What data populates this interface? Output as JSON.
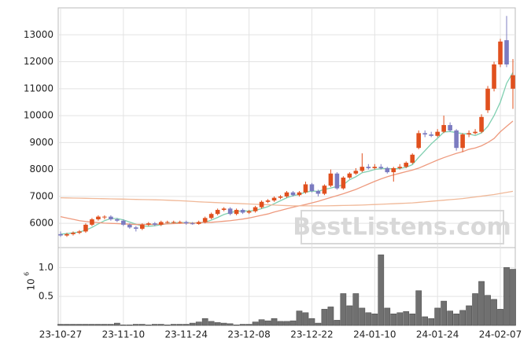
{
  "chart_data": [
    {
      "type": "candlestick",
      "categories": [
        "23-10-27",
        null,
        null,
        null,
        null,
        null,
        null,
        null,
        null,
        null,
        "23-11-10",
        null,
        null,
        null,
        null,
        null,
        null,
        null,
        null,
        null,
        "23-11-24",
        null,
        null,
        null,
        null,
        null,
        null,
        null,
        null,
        null,
        "23-12-08",
        null,
        null,
        null,
        null,
        null,
        null,
        null,
        null,
        null,
        "23-12-22",
        null,
        null,
        null,
        null,
        null,
        null,
        null,
        null,
        null,
        "24-01-10",
        null,
        null,
        null,
        null,
        null,
        null,
        null,
        null,
        null,
        "24-01-24",
        null,
        null,
        null,
        null,
        null,
        null,
        null,
        null,
        null,
        "24-02-07",
        null,
        null
      ],
      "open": [
        5600,
        5550,
        5600,
        5650,
        5700,
        5950,
        6150,
        6250,
        6250,
        6150,
        6100,
        5950,
        5850,
        5800,
        5950,
        6000,
        5950,
        6050,
        6050,
        6050,
        6050,
        6000,
        5980,
        6050,
        6200,
        6350,
        6500,
        6550,
        6350,
        6500,
        6400,
        6450,
        6600,
        6800,
        6850,
        6950,
        7000,
        7150,
        7050,
        7150,
        7450,
        7200,
        7100,
        7400,
        7850,
        7300,
        7700,
        7850,
        7950,
        8100,
        8050,
        8100,
        8050,
        7900,
        8050,
        8100,
        8250,
        8800,
        9350,
        9300,
        9250,
        9400,
        9650,
        9450,
        8800,
        9300,
        9350,
        9400,
        10200,
        11000,
        11900,
        12800,
        11000
      ],
      "high": [
        5700,
        5650,
        5700,
        5750,
        6000,
        6200,
        6300,
        6300,
        6300,
        6200,
        6150,
        6000,
        5900,
        6000,
        6050,
        6050,
        6100,
        6100,
        6100,
        6100,
        6100,
        6050,
        6100,
        6250,
        6400,
        6550,
        6600,
        6600,
        6550,
        6550,
        6500,
        6650,
        6850,
        6900,
        7000,
        7050,
        7200,
        7200,
        7200,
        7550,
        7500,
        7250,
        7450,
        8000,
        7900,
        7750,
        7900,
        8050,
        8600,
        8200,
        8200,
        8200,
        8100,
        8100,
        8200,
        8300,
        8600,
        9450,
        9450,
        9400,
        9500,
        10000,
        9750,
        9500,
        9350,
        9450,
        9500,
        10050,
        11100,
        12000,
        12850,
        13700,
        12100
      ],
      "low": [
        5500,
        5500,
        5550,
        5600,
        5650,
        5900,
        6100,
        6150,
        6100,
        6050,
        5900,
        5800,
        5700,
        5750,
        5900,
        5900,
        5900,
        6000,
        6000,
        6000,
        5950,
        5950,
        5950,
        6000,
        6150,
        6300,
        6450,
        6300,
        6300,
        6350,
        6350,
        6400,
        6550,
        6750,
        6800,
        6900,
        6950,
        7000,
        7000,
        7100,
        7150,
        7000,
        7050,
        7350,
        7250,
        7250,
        7650,
        7800,
        7900,
        8000,
        8000,
        8000,
        7850,
        7550,
        8000,
        8050,
        8200,
        8750,
        9200,
        9200,
        9200,
        9350,
        9400,
        8700,
        8650,
        9200,
        9300,
        9350,
        10100,
        10900,
        11800,
        11800,
        10250
      ],
      "close": [
        5550,
        5600,
        5650,
        5700,
        5950,
        6150,
        6250,
        6250,
        6150,
        6100,
        5950,
        5850,
        5800,
        5950,
        6000,
        5950,
        6050,
        6050,
        6050,
        6050,
        6000,
        5980,
        6050,
        6200,
        6350,
        6500,
        6550,
        6350,
        6500,
        6400,
        6450,
        6600,
        6800,
        6850,
        6950,
        7000,
        7150,
        7050,
        7150,
        7450,
        7200,
        7100,
        7400,
        7850,
        7300,
        7700,
        7850,
        7950,
        8100,
        8050,
        8100,
        8050,
        7900,
        8050,
        8100,
        8250,
        8550,
        9350,
        9300,
        9250,
        9400,
        9650,
        9450,
        8800,
        9300,
        9350,
        9400,
        9950,
        11000,
        11900,
        12750,
        11900,
        11500
      ],
      "up_color": "#e0501e",
      "down_color": "#7b7bc0",
      "series": [
        {
          "color": "#7fcfb0",
          "values": [
            5600,
            5620,
            5650,
            5680,
            5750,
            5850,
            5980,
            6100,
            6180,
            6180,
            6130,
            6050,
            5970,
            5900,
            5890,
            5910,
            5950,
            5990,
            6020,
            6030,
            6030,
            6020,
            6020,
            6050,
            6120,
            6220,
            6330,
            6400,
            6450,
            6460,
            6460,
            6480,
            6550,
            6620,
            6730,
            6840,
            6950,
            7030,
            7070,
            7160,
            7200,
            7190,
            7260,
            7310,
            7370,
            7430,
            7620,
            7730,
            7880,
            7930,
            8000,
            8030,
            8040,
            8020,
            8040,
            8080,
            8180,
            8450,
            8700,
            8950,
            9160,
            9390,
            9410,
            9370,
            9330,
            9320,
            9260,
            9360,
            9600,
            10000,
            10500,
            11200,
            11600
          ]
        },
        {
          "color": "#ee9a7e",
          "values": [
            6250,
            6200,
            6150,
            6100,
            6070,
            6050,
            6030,
            6010,
            6000,
            5990,
            5980,
            5970,
            5960,
            5960,
            5960,
            5960,
            5970,
            5980,
            5990,
            6000,
            6010,
            6010,
            6020,
            6030,
            6040,
            6060,
            6080,
            6100,
            6130,
            6160,
            6200,
            6250,
            6300,
            6350,
            6420,
            6480,
            6540,
            6600,
            6650,
            6700,
            6760,
            6820,
            6890,
            6960,
            7030,
            7100,
            7180,
            7260,
            7360,
            7460,
            7560,
            7650,
            7730,
            7800,
            7860,
            7920,
            7980,
            8050,
            8150,
            8250,
            8350,
            8440,
            8520,
            8600,
            8660,
            8750,
            8800,
            8880,
            9000,
            9150,
            9400,
            9600,
            9800
          ]
        },
        {
          "color": "#f0b898",
          "values": [
            6950,
            6945,
            6940,
            6935,
            6930,
            6925,
            6920,
            6915,
            6910,
            6905,
            6900,
            6895,
            6890,
            6885,
            6880,
            6875,
            6870,
            6860,
            6850,
            6840,
            6830,
            6815,
            6800,
            6790,
            6780,
            6770,
            6760,
            6750,
            6740,
            6730,
            6720,
            6710,
            6700,
            6690,
            6680,
            6670,
            6660,
            6650,
            6650,
            6650,
            6650,
            6650,
            6650,
            6655,
            6660,
            6665,
            6670,
            6675,
            6680,
            6690,
            6700,
            6710,
            6720,
            6730,
            6740,
            6750,
            6760,
            6780,
            6800,
            6820,
            6840,
            6860,
            6880,
            6900,
            6920,
            6950,
            6980,
            7010,
            7040,
            7070,
            7110,
            7150,
            7190
          ]
        }
      ],
      "ylim": [
        5130,
        14000
      ],
      "yticks": [
        6000,
        7000,
        8000,
        9000,
        10000,
        11000,
        12000,
        13000
      ],
      "grid": true,
      "watermark": "BestListens.com"
    },
    {
      "type": "bar",
      "y_label_base": "10",
      "y_label_exponent": "6",
      "values": [
        0.02,
        0.02,
        0.02,
        0.02,
        0.02,
        0.02,
        0.02,
        0.02,
        0.02,
        0.04,
        0.01,
        0.01,
        0.02,
        0.02,
        0.01,
        0.02,
        0.02,
        0.01,
        0.02,
        0.02,
        0.02,
        0.04,
        0.06,
        0.12,
        0.07,
        0.05,
        0.04,
        0.03,
        0.01,
        0.02,
        0.02,
        0.06,
        0.1,
        0.08,
        0.12,
        0.07,
        0.07,
        0.08,
        0.25,
        0.22,
        0.12,
        0.04,
        0.28,
        0.32,
        0.09,
        0.55,
        0.34,
        0.55,
        0.3,
        0.22,
        0.2,
        1.22,
        0.3,
        0.2,
        0.22,
        0.24,
        0.2,
        0.6,
        0.15,
        0.12,
        0.3,
        0.42,
        0.25,
        0.2,
        0.26,
        0.34,
        0.55,
        0.76,
        0.52,
        0.45,
        0.28,
        1.0,
        0.97
      ],
      "color": "#707070",
      "ylim": [
        0,
        1.33
      ],
      "yticks": [
        0.5,
        {
          "value": 1,
          "label": "1.0"
        }
      ],
      "grid": true
    }
  ]
}
